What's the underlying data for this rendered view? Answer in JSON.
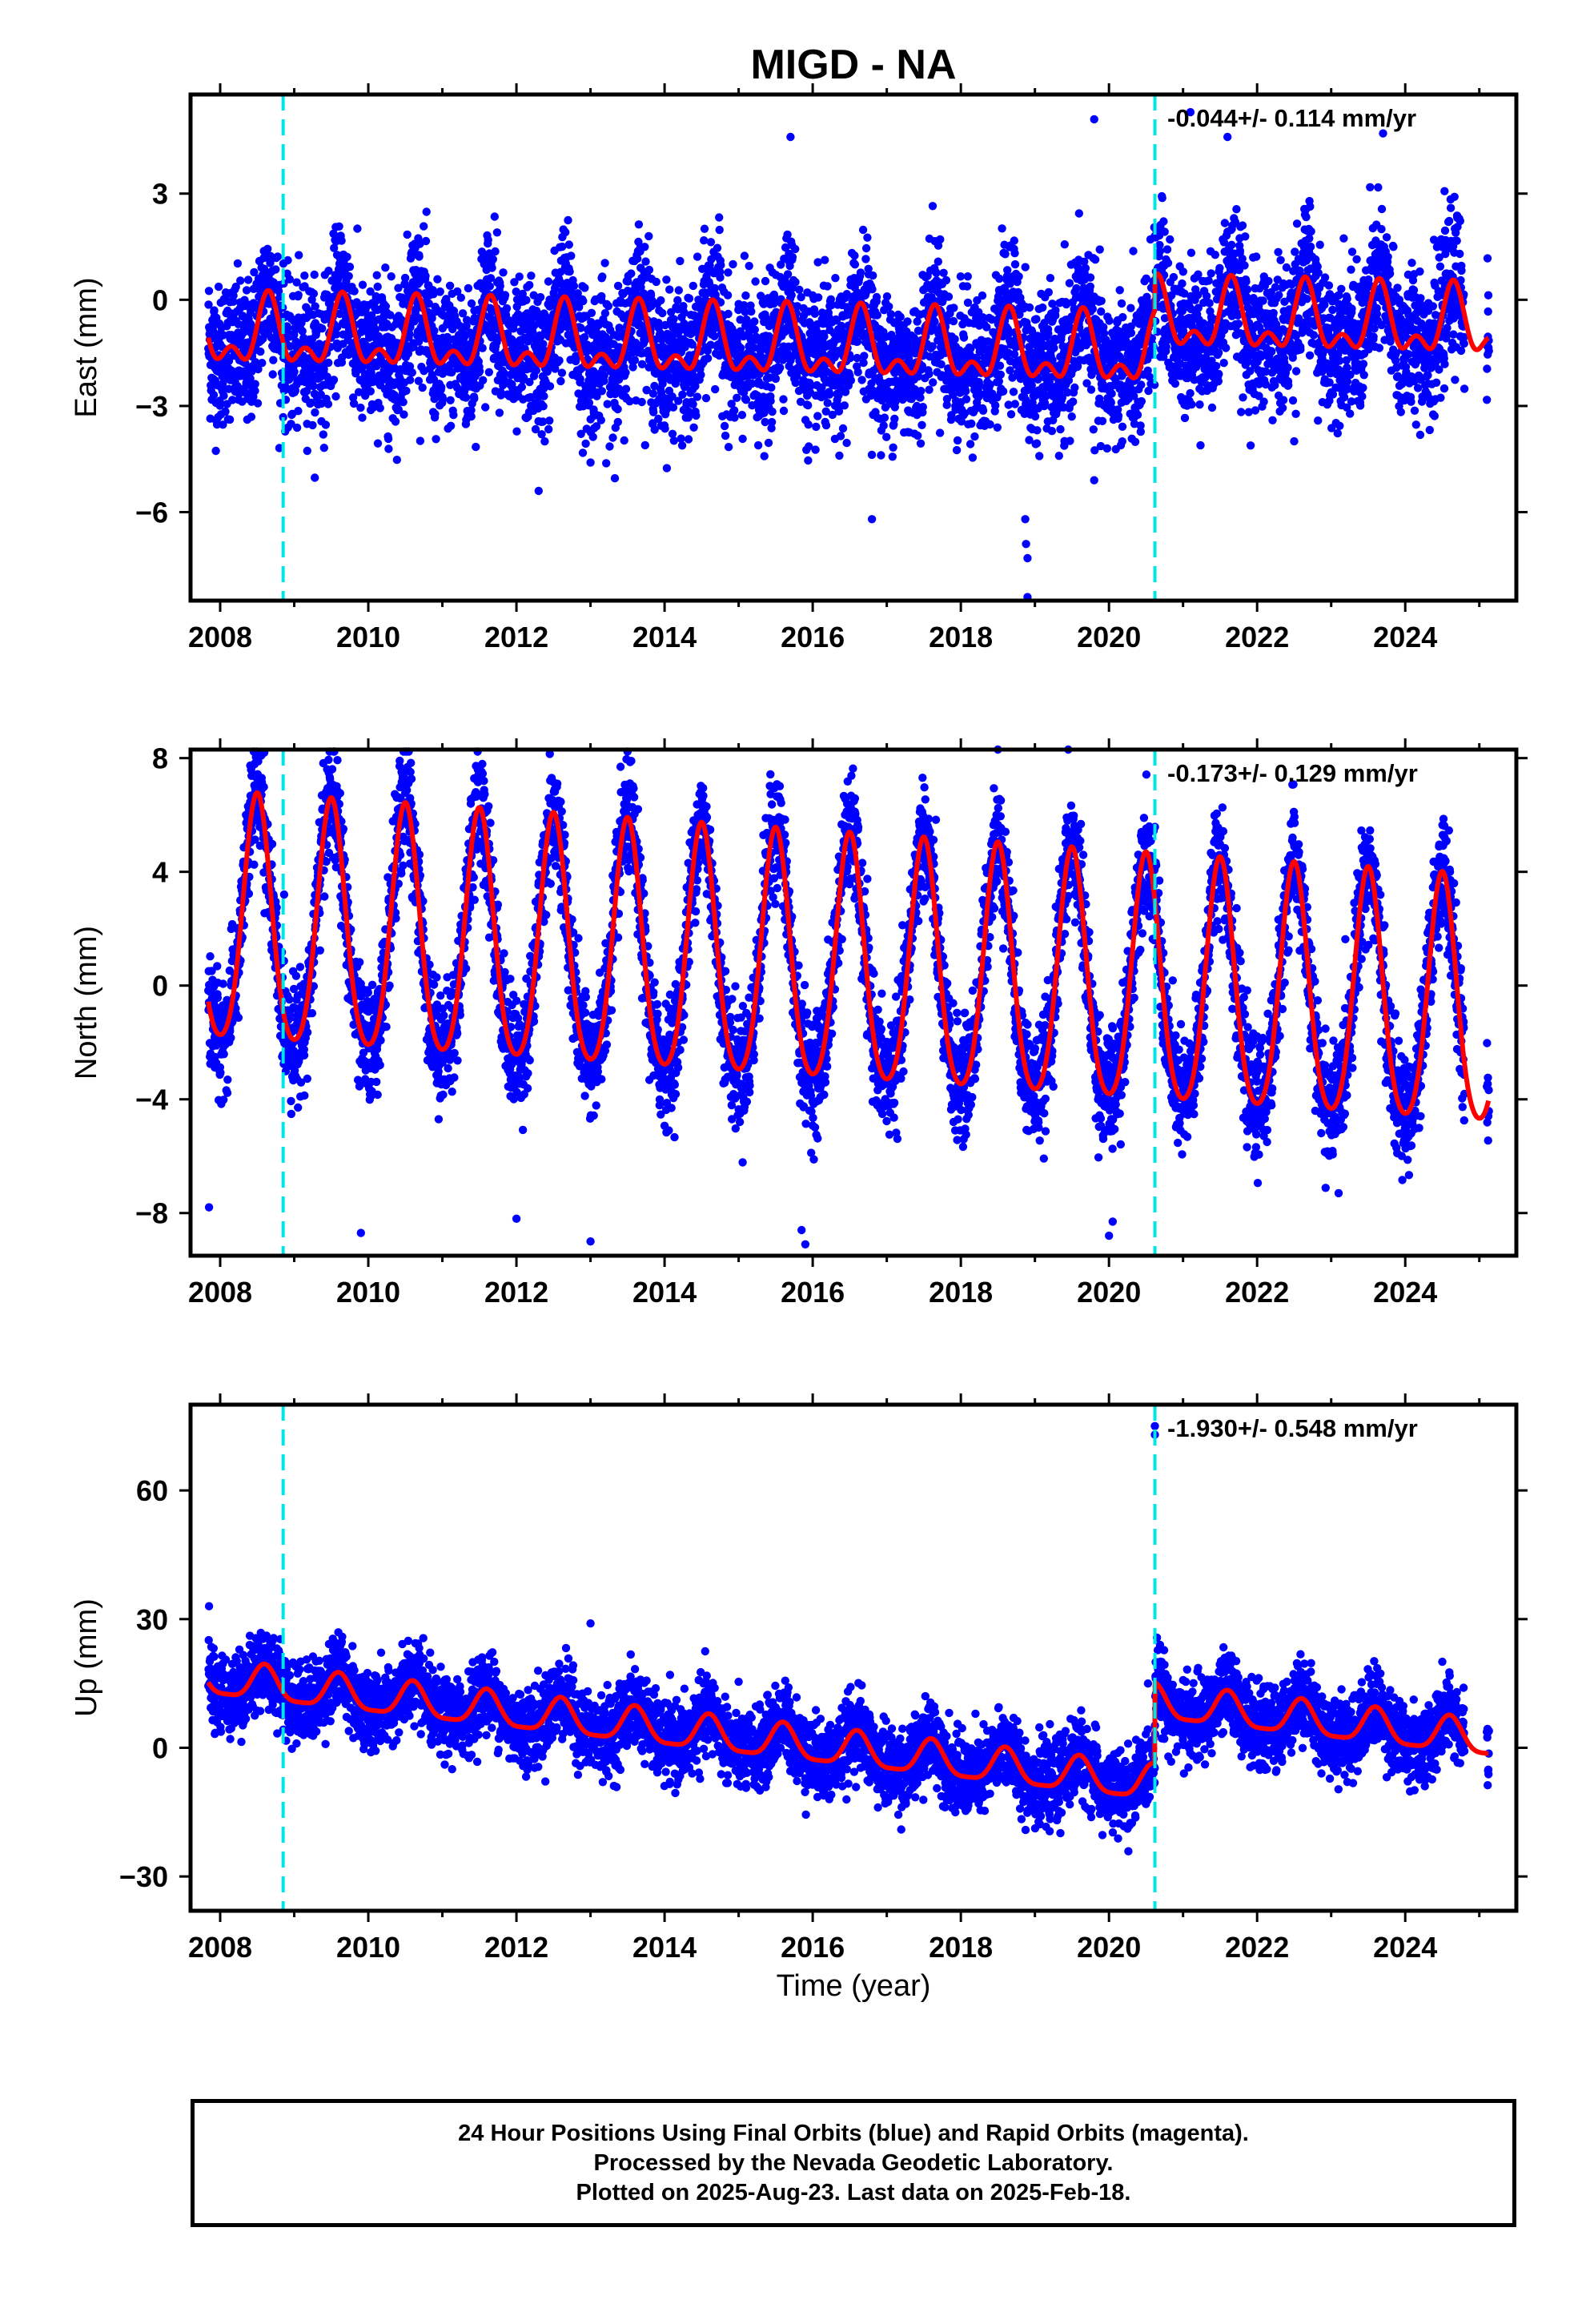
{
  "figure": {
    "title": "MIGD - NA",
    "xlabel": "Time (year)"
  },
  "colors": {
    "final_orbits": "#0000ff",
    "model": "#ff0000",
    "steps": "#00e5e5",
    "frame": "#000000"
  },
  "chart_data": [
    {
      "type": "scatter",
      "title": "MIGD - NA",
      "ylabel": "East (mm)",
      "rate_label": "-0.044+/- 0.114 mm/yr",
      "xlim": [
        2007.6,
        2025.5
      ],
      "ylim": [
        -8.5,
        5.8
      ],
      "yticks": [
        3,
        0,
        -3,
        -6
      ],
      "xticks": [
        2008,
        2010,
        2012,
        2014,
        2016,
        2018,
        2020,
        2022,
        2024
      ],
      "grid": false,
      "step_lines": [
        2008.85,
        2020.62
      ],
      "series": [
        {
          "name": "Final Orbits (blue)",
          "kind": "daily positions",
          "x_range": [
            2007.84,
            2025.13
          ],
          "scatter_sd": 1.0,
          "model": {
            "offset": -1.0,
            "trend_mm_per_yr": -0.044,
            "annual_amp": 0.8,
            "annual_peak": 0.65,
            "semiannual_amp": 0.5,
            "steps": [
              {
                "t": 2020.62,
                "size": 1.0
              }
            ]
          },
          "outliers": [
            [
              2018.9,
              -8.4
            ],
            [
              2018.88,
              -6.9
            ],
            [
              2018.9,
              -7.3
            ],
            [
              2018.87,
              -6.2
            ],
            [
              2012.3,
              -5.4
            ],
            [
              2013.0,
              -4.6
            ],
            [
              2016.8,
              -6.2
            ],
            [
              2019.8,
              -5.1
            ],
            [
              2019.8,
              5.1
            ],
            [
              2021.1,
              5.3
            ],
            [
              2021.6,
              4.6
            ],
            [
              2023.7,
              4.7
            ],
            [
              2015.7,
              4.6
            ],
            [
              2022.5,
              -4.0
            ]
          ]
        }
      ]
    },
    {
      "type": "scatter",
      "ylabel": "North (mm)",
      "rate_label": "-0.173+/- 0.129 mm/yr",
      "xlim": [
        2007.6,
        2025.5
      ],
      "ylim": [
        -9.5,
        8.3
      ],
      "yticks": [
        8,
        4,
        0,
        -4,
        -8
      ],
      "xticks": [
        2008,
        2010,
        2012,
        2014,
        2016,
        2018,
        2020,
        2022,
        2024
      ],
      "grid": false,
      "step_lines": [
        2008.85,
        2020.62
      ],
      "series": [
        {
          "name": "Final Orbits (blue)",
          "kind": "daily positions",
          "x_range": [
            2007.84,
            2025.13
          ],
          "scatter_sd": 1.0,
          "model": {
            "offset": 2.0,
            "trend_mm_per_yr": -0.173,
            "annual_amp": 4.3,
            "annual_peak": 0.5,
            "semiannual_amp": 0.6,
            "steps": []
          },
          "outliers": [
            [
              2007.85,
              -7.8
            ],
            [
              2009.9,
              -8.7
            ],
            [
              2012.0,
              -8.2
            ],
            [
              2013.0,
              -9.0
            ],
            [
              2015.9,
              -9.1
            ],
            [
              2015.85,
              -8.6
            ],
            [
              2020.0,
              -8.8
            ],
            [
              2020.05,
              -8.3
            ],
            [
              2013.55,
              7.9
            ],
            [
              2018.5,
              8.3
            ],
            [
              2019.45,
              8.3
            ],
            [
              2023.1,
              -7.3
            ]
          ]
        }
      ]
    },
    {
      "type": "scatter",
      "ylabel": "Up (mm)",
      "rate_label": "-1.930+/- 0.548 mm/yr",
      "xlim": [
        2007.6,
        2025.5
      ],
      "ylim": [
        -38,
        80
      ],
      "yticks": [
        60,
        30,
        0,
        -30
      ],
      "xticks": [
        2008,
        2010,
        2012,
        2014,
        2016,
        2018,
        2020,
        2022,
        2024
      ],
      "grid": false,
      "step_lines": [
        2008.85,
        2020.62
      ],
      "series": [
        {
          "name": "Final Orbits (blue)",
          "kind": "daily positions",
          "x_range": [
            2007.84,
            2025.13
          ],
          "scatter_sd": 4.5,
          "model": {
            "offset": 16.0,
            "trend_mm_per_yr": -1.93,
            "annual_amp": 4.0,
            "annual_peak": 0.6,
            "semiannual_amp": 1.0,
            "steps": [
              {
                "t": 2020.62,
                "size": 19.0
              }
            ]
          },
          "outliers": [
            [
              2020.62,
              75.0
            ],
            [
              2020.62,
              73.0
            ],
            [
              2020.63,
              20.0
            ],
            [
              2007.85,
              33.0
            ],
            [
              2021.6,
              20.0
            ],
            [
              2013.0,
              29.0
            ]
          ]
        }
      ]
    }
  ],
  "footer": {
    "line1": "24 Hour Positions Using Final Orbits (blue) and Rapid Orbits (magenta).",
    "line2": "Processed by the Nevada Geodetic Laboratory.",
    "line3": "Plotted on 2025-Aug-23. Last data on 2025-Feb-18."
  }
}
